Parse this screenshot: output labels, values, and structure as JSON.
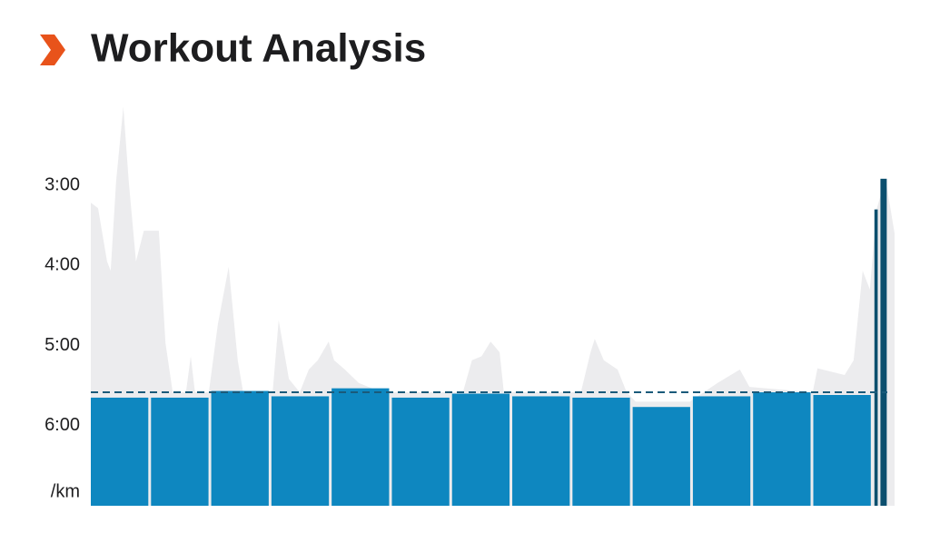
{
  "chart_data": {
    "type": "bar",
    "title": "Workout Analysis",
    "y_unit": "/km",
    "ylim": [
      420,
      120
    ],
    "yticks": [
      {
        "value": 180,
        "label": "3:00"
      },
      {
        "value": 240,
        "label": "4:00"
      },
      {
        "value": 300,
        "label": "5:00"
      },
      {
        "value": 360,
        "label": "6:00"
      }
    ],
    "xlim": [
      0,
      13.35
    ],
    "values": [
      339,
      339,
      334,
      338,
      332,
      339,
      336,
      338,
      339,
      346,
      338,
      335,
      337,
      198,
      175
    ],
    "distances": [
      1,
      1,
      1,
      1,
      1,
      1,
      1,
      1,
      1,
      1,
      1,
      1,
      1,
      0.1,
      0.15
    ],
    "colors": [
      "#0e87c0",
      "#0e87c0",
      "#0e87c0",
      "#0e87c0",
      "#0e87c0",
      "#0e87c0",
      "#0e87c0",
      "#0e87c0",
      "#0e87c0",
      "#0e87c0",
      "#0e87c0",
      "#0e87c0",
      "#0e87c0",
      "#0b4f6e",
      "#0b4f6e"
    ],
    "average": 335,
    "average_color": "#1a5a7a",
    "trace": {
      "color": "#ececee",
      "x": [
        0,
        0.12,
        0.27,
        0.33,
        0.42,
        0.54,
        0.63,
        0.75,
        0.88,
        1.13,
        1.24,
        1.36,
        1.58,
        1.66,
        1.73,
        1.96,
        2.11,
        2.29,
        2.44,
        2.53,
        3.02,
        3.12,
        3.29,
        3.47,
        3.62,
        3.77,
        3.95,
        4.04,
        4.22,
        4.45,
        4.83,
        6.18,
        6.33,
        6.49,
        6.64,
        6.79,
        6.86,
        8.14,
        8.3,
        8.37,
        8.52,
        8.75,
        8.9,
        9.05,
        9.95,
        10.41,
        10.78,
        10.94,
        11.99,
        12.07,
        12.52,
        12.67,
        12.82,
        12.94,
        13.05,
        13.2,
        13.35
      ],
      "values": [
        193,
        197,
        237,
        244,
        177,
        121,
        177,
        237,
        214,
        214,
        298,
        335,
        335,
        308,
        335,
        335,
        284,
        241,
        311,
        335,
        335,
        281,
        325,
        335,
        318,
        311,
        297,
        311,
        318,
        328,
        335,
        335,
        311,
        308,
        297,
        305,
        335,
        335,
        305,
        295,
        311,
        318,
        335,
        342,
        342,
        328,
        318,
        331,
        335,
        317,
        322,
        311,
        244,
        258,
        198,
        175,
        216
      ]
    }
  }
}
